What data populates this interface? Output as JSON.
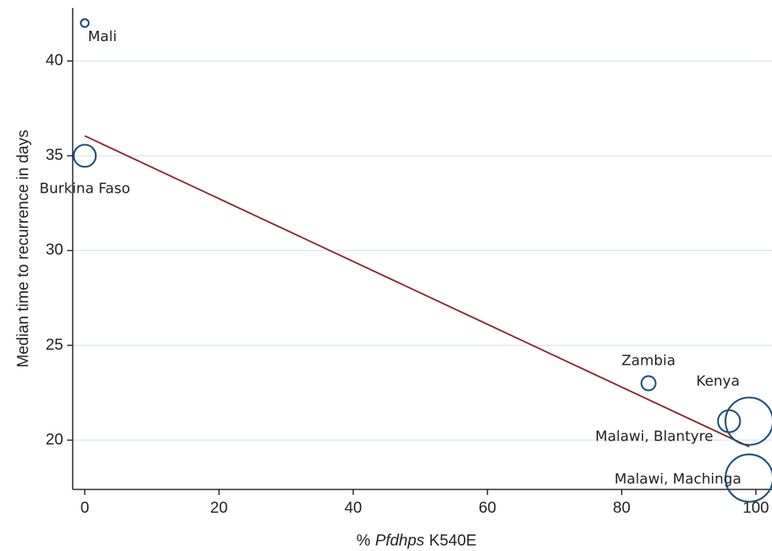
{
  "chart_data": {
    "type": "scatter",
    "ylabel": "Median time to recurrence in days",
    "xlabel": [
      "%",
      "Pfdhps",
      "K540E"
    ],
    "labels": [
      "Mali",
      "Burkina Faso",
      "Zambia",
      "Malawi, Blantyre",
      "Kenya",
      "Malawi, Machinga"
    ],
    "x": [
      0,
      0,
      84,
      96,
      99,
      99
    ],
    "values": [
      42,
      35,
      23,
      21,
      21,
      18
    ],
    "sizes": [
      25,
      196,
      81,
      196,
      900,
      900
    ],
    "color": "#1f4e79",
    "fit": {
      "x": [
        0,
        99
      ],
      "values": [
        36.05,
        19.65
      ],
      "color": "#8b2a2f"
    },
    "xlim": [
      -1.8,
      102.4
    ],
    "ylim": [
      17.4,
      42.8
    ],
    "xticks": [
      0,
      20,
      40,
      60,
      80,
      100
    ],
    "yticks": [
      20,
      25,
      30,
      35,
      40
    ],
    "grid": true
  }
}
